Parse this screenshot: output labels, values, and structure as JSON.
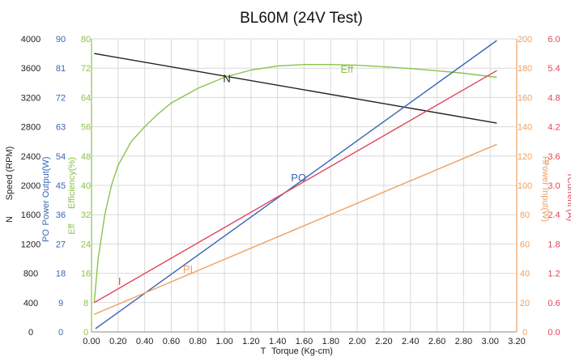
{
  "chart_data": {
    "type": "line",
    "title": "BL60M (24V Test)",
    "xlabel": {
      "symbol": "T",
      "text": "Torque (Kg-cm)"
    },
    "xlim": [
      0,
      3.2
    ],
    "xticks": [
      "0.00",
      "0.20",
      "0.40",
      "0.60",
      "0.80",
      "1.00",
      "1.20",
      "1.40",
      "1.60",
      "1.80",
      "2.00",
      "2.20",
      "2.40",
      "2.60",
      "2.80",
      "3.00",
      "3.20"
    ],
    "grid": true,
    "axes": [
      {
        "id": "speed",
        "symbol": "N",
        "label": "Speed (RPM)",
        "color": "#222222",
        "side": "left",
        "range": [
          0,
          4000
        ],
        "ticks": [
          "0",
          "400",
          "800",
          "1200",
          "1600",
          "2000",
          "2400",
          "2800",
          "3200",
          "3600",
          "4000"
        ]
      },
      {
        "id": "power_out",
        "symbol": "PO",
        "label": "Power Output(W)",
        "color": "#3a66b5",
        "side": "left",
        "range": [
          0,
          90
        ],
        "ticks": [
          "0",
          "9",
          "18",
          "27",
          "36",
          "45",
          "54",
          "63",
          "72",
          "81",
          "90"
        ]
      },
      {
        "id": "eff",
        "symbol": "Eff",
        "label": "Efficiency(%)",
        "color": "#8bc34a",
        "side": "left",
        "range": [
          0,
          80
        ],
        "ticks": [
          "0",
          "8",
          "16",
          "24",
          "32",
          "40",
          "48",
          "56",
          "64",
          "72",
          "80"
        ]
      },
      {
        "id": "power_in",
        "symbol": "PI",
        "label": "Power Input(W)",
        "color": "#f0a060",
        "side": "right",
        "range": [
          0,
          200
        ],
        "ticks": [
          "0",
          "20",
          "40",
          "60",
          "80",
          "100",
          "120",
          "140",
          "160",
          "180",
          "200"
        ]
      },
      {
        "id": "current",
        "symbol": "I",
        "label": "Current (A)",
        "color": "#e0465a",
        "side": "right",
        "range": [
          0,
          6
        ],
        "ticks": [
          "0.0",
          "0.6",
          "1.2",
          "1.8",
          "2.4",
          "3.0",
          "3.6",
          "4.2",
          "4.8",
          "5.4",
          "6.0"
        ]
      }
    ],
    "series": [
      {
        "name": "N",
        "axis": "speed",
        "color": "#222222",
        "label_x": 0.99,
        "x": [
          0.02,
          3.05
        ],
        "y": [
          3800,
          2850
        ]
      },
      {
        "name": "Eff",
        "axis": "eff",
        "color": "#8bc34a",
        "label_x": 1.85,
        "x": [
          0.02,
          0.05,
          0.1,
          0.15,
          0.2,
          0.3,
          0.4,
          0.5,
          0.6,
          0.8,
          1.0,
          1.2,
          1.4,
          1.6,
          1.8,
          2.0,
          2.2,
          2.4,
          2.6,
          2.8,
          3.05
        ],
        "y": [
          8,
          20,
          32,
          40,
          45.5,
          52,
          56,
          59.5,
          62.5,
          66.5,
          69.5,
          71.5,
          72.6,
          73.0,
          73.0,
          72.8,
          72.4,
          71.9,
          71.3,
          70.6,
          69.5
        ]
      },
      {
        "name": "PO",
        "axis": "power_out",
        "color": "#3a66b5",
        "label_x": 1.55,
        "x": [
          0.03,
          3.05
        ],
        "y": [
          1,
          89.5
        ]
      },
      {
        "name": "I",
        "axis": "current",
        "color": "#e0465a",
        "label_x": 0.2,
        "x": [
          0.02,
          3.05
        ],
        "y": [
          0.6,
          5.35
        ]
      },
      {
        "name": "PI",
        "axis": "power_in",
        "color": "#f0a060",
        "label_x": 0.7,
        "x": [
          0.02,
          3.05
        ],
        "y": [
          12,
          128
        ]
      }
    ]
  }
}
